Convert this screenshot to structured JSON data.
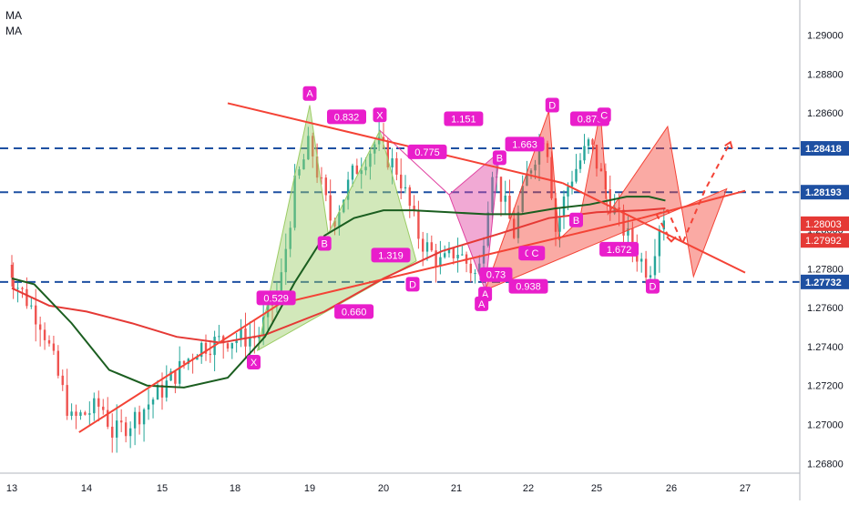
{
  "indicators": [
    "MA",
    "MA"
  ],
  "colors": {
    "up": "#26a69a",
    "down": "#ef5350",
    "ma_slow": "#e53935",
    "ma_fast": "#1b5e20",
    "level": "#1e50a2",
    "pattern_green": "#9ccc65",
    "pattern_pink": "#e040a0",
    "pattern_red": "#f44336",
    "pattern_purple": "#c879d8",
    "label_bg": "#e91ecb"
  },
  "chart_data": {
    "type": "candlestick",
    "x_ticks": [
      "13",
      "14",
      "15",
      "18",
      "19",
      "20",
      "21",
      "22",
      "25",
      "26",
      "27"
    ],
    "ylim": [
      1.2675,
      1.2918
    ],
    "y_ticks": [
      "1.29000",
      "1.28800",
      "1.28600",
      "1.28400",
      "1.28200",
      "1.28000",
      "1.27800",
      "1.27600",
      "1.27400",
      "1.27200",
      "1.27000",
      "1.26800"
    ],
    "horizontal_levels": [
      {
        "value": 1.28418,
        "label": "1.28418"
      },
      {
        "value": 1.28193,
        "label": "1.28193"
      },
      {
        "value": 1.27732,
        "label": "1.27732"
      }
    ],
    "price_badges": [
      {
        "value": 1.28003,
        "label": "1.28003"
      },
      {
        "value": 1.27992,
        "label": "1.27992"
      }
    ],
    "trendlines": [
      {
        "x1": 13.9,
        "y1": 1.2696,
        "x2": 16.6,
        "y2": 1.2762
      },
      {
        "x1": 16.6,
        "y1": 1.2762,
        "x2": 21.6,
        "y2": 1.2806
      },
      {
        "x1": 21.6,
        "y1": 1.2806,
        "x2": 23.6,
        "y2": 1.282
      },
      {
        "x1": 15.9,
        "y1": 1.2865,
        "x2": 20.5,
        "y2": 1.2824
      },
      {
        "x1": 20.5,
        "y1": 1.2824,
        "x2": 25.0,
        "y2": 1.2778
      }
    ],
    "patterns": [
      {
        "fill": "#9ccc65",
        "points": [
          [
            16.3,
            1.2738
          ],
          [
            17.0,
            1.2864
          ],
          [
            17.25,
            1.2798
          ],
          [
            17.95,
            1.2851
          ],
          [
            18.45,
            1.2784
          ]
        ]
      },
      {
        "fill": "#e040a0",
        "points": [
          [
            17.95,
            1.2851
          ],
          [
            18.9,
            1.2818
          ],
          [
            19.4,
            1.2769
          ],
          [
            19.6,
            1.284
          ],
          [
            18.9,
            1.2818
          ]
        ]
      },
      {
        "fill": "#f44336",
        "points": [
          [
            19.4,
            1.2769
          ],
          [
            20.3,
            1.2861
          ],
          [
            20.45,
            1.2795
          ],
          [
            20.75,
            1.2805
          ],
          [
            21.05,
            1.2861
          ],
          [
            21.15,
            1.2808
          ],
          [
            21.95,
            1.2853
          ],
          [
            22.3,
            1.2776
          ],
          [
            22.75,
            1.2821
          ]
        ]
      }
    ],
    "labels": [
      {
        "text": "A",
        "x": 17.0,
        "y": 1.287
      },
      {
        "text": "0.832",
        "x": 17.5,
        "y": 1.2858
      },
      {
        "text": "X",
        "x": 17.95,
        "y": 1.2859
      },
      {
        "text": "1.151",
        "x": 19.1,
        "y": 1.2857
      },
      {
        "text": "D",
        "x": 20.35,
        "y": 1.2864
      },
      {
        "text": "0.879",
        "x": 20.9,
        "y": 1.2857
      },
      {
        "text": "C",
        "x": 21.1,
        "y": 1.2859
      },
      {
        "text": "0.775",
        "x": 18.6,
        "y": 1.284
      },
      {
        "text": "B",
        "x": 19.6,
        "y": 1.2837
      },
      {
        "text": "1.663",
        "x": 19.95,
        "y": 1.2844
      },
      {
        "text": "B",
        "x": 17.2,
        "y": 1.2793
      },
      {
        "text": "1.319",
        "x": 18.1,
        "y": 1.2787
      },
      {
        "text": "0.73",
        "x": 19.55,
        "y": 1.2777
      },
      {
        "text": "0.9",
        "x": 20.05,
        "y": 1.2788
      },
      {
        "text": "C",
        "x": 20.1,
        "y": 1.2788
      },
      {
        "text": "B",
        "x": 20.7,
        "y": 1.2805
      },
      {
        "text": "1.672",
        "x": 21.3,
        "y": 1.279
      },
      {
        "text": "D",
        "x": 18.4,
        "y": 1.2772
      },
      {
        "text": "A",
        "x": 19.4,
        "y": 1.2767
      },
      {
        "text": "A",
        "x": 19.35,
        "y": 1.2762
      },
      {
        "text": "0.938",
        "x": 20.0,
        "y": 1.2771
      },
      {
        "text": "D",
        "x": 21.75,
        "y": 1.2771
      },
      {
        "text": "0.529",
        "x": 16.55,
        "y": 1.2765
      },
      {
        "text": "0.660",
        "x": 17.6,
        "y": 1.2758
      },
      {
        "text": "X",
        "x": 16.25,
        "y": 1.2732
      }
    ],
    "projection": [
      [
        21.8,
        1.2808
      ],
      [
        21.95,
        1.281
      ],
      [
        22.15,
        1.2793
      ],
      [
        22.45,
        1.282
      ],
      [
        22.8,
        1.2845
      ]
    ],
    "projection2": [
      [
        21.8,
        1.2808
      ],
      [
        22.0,
        1.2794
      ]
    ]
  }
}
